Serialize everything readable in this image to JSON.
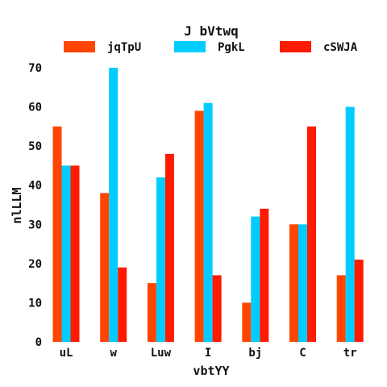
{
  "chart_data": {
    "type": "bar",
    "title": "J bVtwq",
    "xlabel": "vbtYY",
    "ylabel": "nlLLM",
    "categories": [
      "uL",
      "w",
      "Luw",
      "I",
      "bj",
      "C",
      "tr"
    ],
    "ylim": [
      0,
      70
    ],
    "yticks": [
      0,
      10,
      20,
      30,
      40,
      50,
      60,
      70
    ],
    "grid": false,
    "legend_position": "top",
    "series": [
      {
        "name": "jqTpU",
        "color": "#ff4500",
        "values": [
          55,
          38,
          15,
          59,
          10,
          30,
          17
        ]
      },
      {
        "name": "PgkL",
        "color": "#00ccff",
        "values": [
          45,
          70,
          42,
          61,
          32,
          30,
          60
        ]
      },
      {
        "name": "cSWJA",
        "color": "#ff1a00",
        "values": [
          45,
          19,
          48,
          17,
          34,
          55,
          21
        ]
      }
    ]
  }
}
